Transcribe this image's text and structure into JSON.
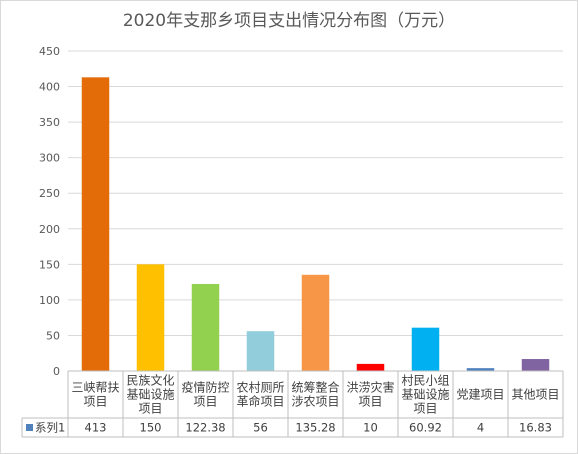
{
  "chart_data": {
    "type": "bar",
    "title": "2020年支那乡项目支出情况分布图（万元）",
    "categories": [
      [
        "三峡帮扶",
        "项目"
      ],
      [
        "民族文化",
        "基础设施",
        "项目"
      ],
      [
        "疫情防控",
        "项目"
      ],
      [
        "农村厕所",
        "革命项目"
      ],
      [
        "统筹整合",
        "涉农项目"
      ],
      [
        "洪涝灾害",
        "项目"
      ],
      [
        "村民小组",
        "基础设施",
        "项目"
      ],
      [
        "党建项目"
      ],
      [
        "其他项目"
      ]
    ],
    "series": [
      {
        "name": "系列1",
        "values": [
          413,
          150,
          122.38,
          56,
          135.28,
          10,
          60.92,
          4,
          16.83
        ],
        "value_labels": [
          "413",
          "150",
          "122.38",
          "56",
          "135.28",
          "10",
          "60.92",
          "4",
          "16.83"
        ]
      }
    ],
    "bar_colors": [
      "#E36C09",
      "#FFC000",
      "#92D050",
      "#92CDDC",
      "#F79646",
      "#FF0000",
      "#00B0F0",
      "#4F81BD",
      "#8064A2"
    ],
    "legend_key_color": "#4F81BD",
    "ylim": [
      0,
      450
    ],
    "yticks": [
      0,
      50,
      100,
      150,
      200,
      250,
      300,
      350,
      400,
      450
    ],
    "grid": true,
    "legend": "data-table"
  }
}
